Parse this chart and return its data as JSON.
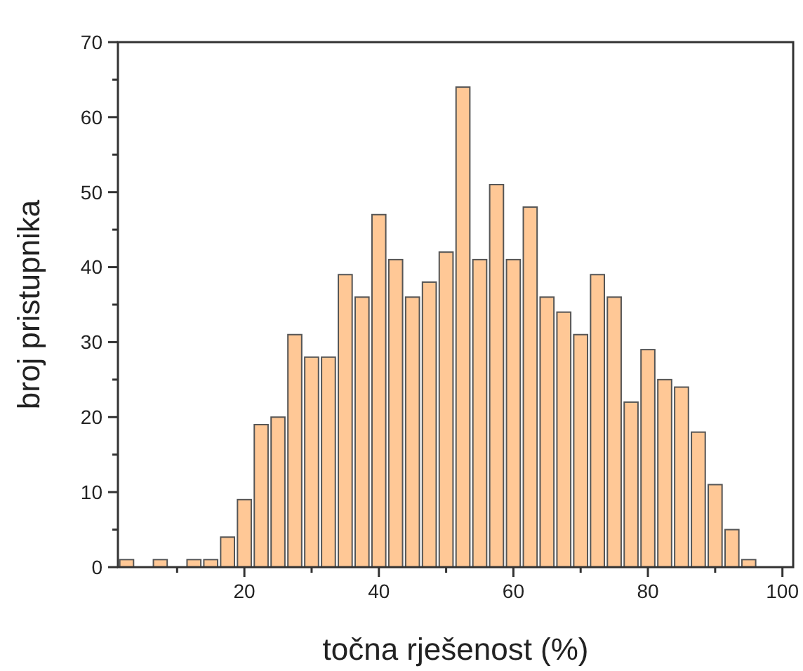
{
  "chart_data": {
    "type": "histogram",
    "xlabel": "točna rješenost (%)",
    "ylabel": "broj pristupnika",
    "bins": [
      1.25,
      3.75,
      6.25,
      8.75,
      11.25,
      13.75,
      16.25,
      18.75,
      21.25,
      23.75,
      26.25,
      28.75,
      31.25,
      33.75,
      36.25,
      38.75,
      41.25,
      43.75,
      46.25,
      48.75,
      51.25,
      53.75,
      56.25,
      58.75,
      61.25,
      63.75,
      66.25,
      68.75,
      71.25,
      73.75,
      76.25,
      78.75,
      81.25,
      83.75,
      86.25,
      88.75,
      91.25,
      93.75,
      96.25
    ],
    "values": [
      1,
      0,
      1,
      0,
      1,
      1,
      4,
      9,
      19,
      20,
      31,
      28,
      28,
      39,
      36,
      47,
      41,
      36,
      38,
      42,
      64,
      41,
      51,
      41,
      48,
      36,
      34,
      31,
      39,
      36,
      22,
      29,
      25,
      24,
      18,
      11,
      5,
      1
    ],
    "color": "#ffc896",
    "xlim": [
      1.2,
      101.6
    ],
    "xticks": [
      {
        "value": 10,
        "label": null
      },
      20,
      {
        "value": 30,
        "label": null
      },
      40,
      {
        "value": 50,
        "label": null
      },
      60,
      {
        "value": 70,
        "label": null
      },
      80,
      {
        "value": 90,
        "label": null
      },
      100
    ],
    "ylim": [
      0,
      70
    ],
    "yticks": [
      0,
      {
        "value": 5,
        "label": null
      },
      10,
      {
        "value": 15,
        "label": null
      },
      20,
      {
        "value": 25,
        "label": null
      },
      30,
      {
        "value": 35,
        "label": null
      },
      40,
      {
        "value": 45,
        "label": null
      },
      50,
      {
        "value": 55,
        "label": null
      },
      60,
      {
        "value": 65,
        "label": null
      },
      70
    ],
    "grid": false
  }
}
